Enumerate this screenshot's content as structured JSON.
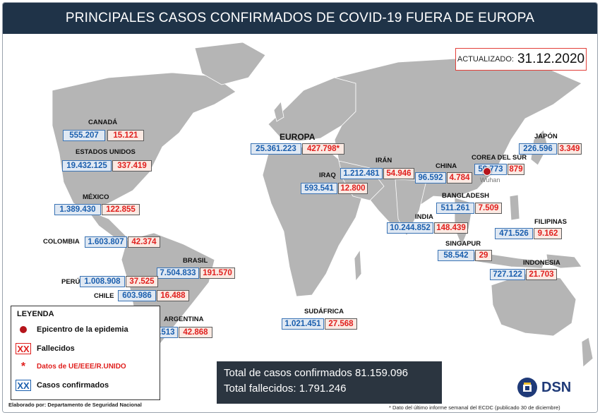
{
  "title": "PRINCIPALES CASOS CONFIRMADOS DE COVID-19 FUERA DE EUROPA",
  "updated": {
    "label": "ACTUALIZADO:",
    "date": "31.12.2020"
  },
  "regions": {
    "canada": {
      "name": "CANADÁ",
      "cases": "555.207",
      "deaths": "15.121"
    },
    "usa": {
      "name": "ESTADOS UNIDOS",
      "cases": "19.432.125",
      "deaths": "337.419"
    },
    "mexico": {
      "name": "MÉXICO",
      "cases": "1.389.430",
      "deaths": "122.855"
    },
    "colombia": {
      "name": "COLOMBIA",
      "cases": "1.603.807",
      "deaths": "42.374"
    },
    "brasil": {
      "name": "BRASIL",
      "cases": "7.504.833",
      "deaths": "191.570"
    },
    "peru": {
      "name": "PERÚ",
      "cases": "1.008.908",
      "deaths": "37.525"
    },
    "chile": {
      "name": "CHILE",
      "cases": "603.986",
      "deaths": "16.488"
    },
    "argentina": {
      "name": "ARGENTINA",
      "cases": "1.590.513",
      "deaths": "42.868"
    },
    "europa": {
      "name": "EUROPA",
      "cases": "25.361.223",
      "deaths": "427.798*"
    },
    "iraq": {
      "name": "IRAQ",
      "cases": "593.541",
      "deaths": "12.800"
    },
    "iran": {
      "name": "IRÁN",
      "cases": "1.212.481",
      "deaths": "54.946"
    },
    "china": {
      "name": "CHINA",
      "cases": "96.592",
      "deaths": "4.784"
    },
    "corea": {
      "name": "COREA DEL SUR",
      "cases": "59.773",
      "deaths": "879"
    },
    "japon": {
      "name": "JAPÓN",
      "cases": "226.596",
      "deaths": "3.349"
    },
    "bangladesh": {
      "name": "BANGLADESH",
      "cases": "511.261",
      "deaths": "7.509"
    },
    "india": {
      "name": "INDIA",
      "cases": "10.244.852",
      "deaths": "148.439"
    },
    "filipinas": {
      "name": "FILIPINAS",
      "cases": "471.526",
      "deaths": "9.162"
    },
    "singapur": {
      "name": "SINGAPUR",
      "cases": "58.542",
      "deaths": "29"
    },
    "indonesia": {
      "name": "INDONESIA",
      "cases": "727.122",
      "deaths": "21.703"
    },
    "sudafrica": {
      "name": "SUDÁFRICA",
      "cases": "1.021.451",
      "deaths": "27.568"
    }
  },
  "epicenter": {
    "label": "Wuhan"
  },
  "legend": {
    "title": "LEYENDA",
    "epicenter": "Epicentro de la epidemia",
    "deaths_symbol": "XX",
    "deaths": "Fallecidos",
    "eu_symbol": "*",
    "eu_data": "Datos de UE/EEE/R.UNIDO",
    "cases_symbol": "XX",
    "cases": "Casos confirmados"
  },
  "totals": {
    "cases_label": "Total de casos confirmados",
    "cases": "81.159.096",
    "deaths_label": "Total fallecidos:",
    "deaths": "1.791.246"
  },
  "credit": "Elaborado por: Departamento de Seguridad Nacional",
  "brand": "DSN",
  "footnote": "* Dato del último informe semanal del ECDC (publicado 30 de diciembre)",
  "colors": {
    "header": "#1f3348",
    "land": "#b5b5b5",
    "cases_text": "#1b5fae",
    "deaths_text": "#e0201e",
    "epicenter": "#b5141b"
  }
}
